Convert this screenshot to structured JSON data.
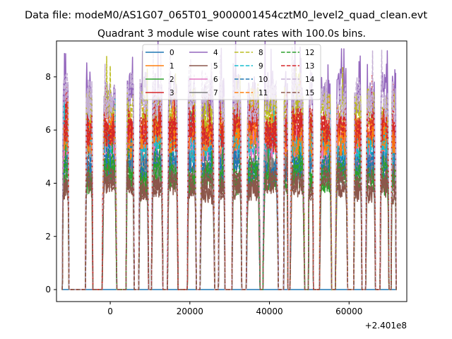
{
  "figure": {
    "suptitle": "Data file: modeM0/AS1G07_065T01_9000001454cztM0_level2_quad_clean.evt"
  },
  "chart_data": {
    "type": "line",
    "title": "Quadrant 3 module wise count rates with 100.0s bins.",
    "xlabel": "",
    "ylabel": "",
    "x_offset_label": "+2.401e8",
    "x_offset": 240100000,
    "xlim": [
      -13500,
      74500
    ],
    "ylim": [
      -0.45,
      9.35
    ],
    "x_ticks": [
      0,
      20000,
      40000,
      60000
    ],
    "x_tick_labels": [
      "0",
      "20000",
      "40000",
      "60000"
    ],
    "y_ticks": [
      0,
      2,
      4,
      6,
      8
    ],
    "y_tick_labels": [
      "0",
      "2",
      "4",
      "6",
      "8"
    ],
    "grid": false,
    "legend": {
      "placement": "top-center",
      "columns": 4
    },
    "on_intervals": [
      [
        -12000,
        -10400
      ],
      [
        -6200,
        -4400
      ],
      [
        -2000,
        1600
      ],
      [
        4000,
        6000
      ],
      [
        7200,
        9600
      ],
      [
        10400,
        13200
      ],
      [
        14400,
        17000
      ],
      [
        19400,
        21600
      ],
      [
        22600,
        26200
      ],
      [
        27200,
        28800
      ],
      [
        30600,
        33000
      ],
      [
        34200,
        37600
      ],
      [
        38400,
        42200
      ],
      [
        43600,
        44600
      ],
      [
        45200,
        48800
      ],
      [
        49800,
        51000
      ],
      [
        52600,
        55600
      ],
      [
        56600,
        59600
      ],
      [
        61200,
        63200
      ],
      [
        64200,
        66600
      ],
      [
        67800,
        70000
      ],
      [
        70600,
        71800
      ]
    ],
    "series": [
      {
        "name": "0",
        "color": "#1f77b4",
        "linestyle": "solid",
        "level": 0.0,
        "note": "flat at 0"
      },
      {
        "name": "1",
        "color": "#ff7f0e",
        "linestyle": "solid",
        "level": 5.6
      },
      {
        "name": "2",
        "color": "#2ca02c",
        "linestyle": "solid",
        "level": 4.2
      },
      {
        "name": "3",
        "color": "#d62728",
        "linestyle": "solid",
        "level": 5.9
      },
      {
        "name": "4",
        "color": "#9467bd",
        "linestyle": "solid",
        "level": 7.3
      },
      {
        "name": "5",
        "color": "#8c564b",
        "linestyle": "solid",
        "level": 3.9
      },
      {
        "name": "6",
        "color": "#e377c2",
        "linestyle": "solid",
        "level": 5.1
      },
      {
        "name": "7",
        "color": "#7f7f7f",
        "linestyle": "solid",
        "level": 4.6
      },
      {
        "name": "8",
        "color": "#bcbd22",
        "linestyle": "dashed",
        "level": 6.6
      },
      {
        "name": "9",
        "color": "#17becf",
        "linestyle": "dashed",
        "level": 5.4
      },
      {
        "name": "10",
        "color": "#1f77b4",
        "linestyle": "dashed",
        "level": 4.6
      },
      {
        "name": "11",
        "color": "#ff7f0e",
        "linestyle": "dashed",
        "level": 5.8
      },
      {
        "name": "12",
        "color": "#2ca02c",
        "linestyle": "dashed",
        "level": 4.3
      },
      {
        "name": "13",
        "color": "#d62728",
        "linestyle": "dashed",
        "level": 6.1
      },
      {
        "name": "14",
        "color": "#c5b0d5",
        "linestyle": "dashed",
        "level": 7.2
      },
      {
        "name": "15",
        "color": "#8c564b",
        "linestyle": "dashed",
        "level": 4.0
      }
    ]
  }
}
